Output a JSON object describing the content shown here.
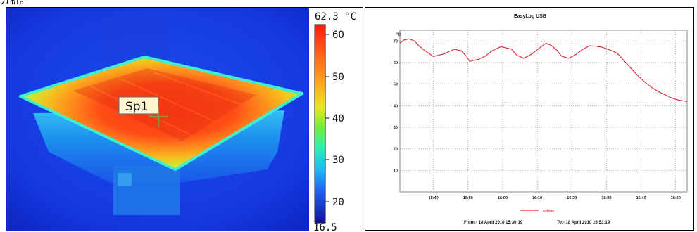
{
  "cropped_caption": "分析。",
  "thermal": {
    "max_label": "62.3 °C",
    "min_label": "16.5",
    "spot_label": "Sp1",
    "scale_ticks": [
      "60",
      "50",
      "40",
      "30",
      "20"
    ],
    "colors": {
      "background": "#1533e6",
      "hot": "#ff3b10",
      "warm": "#f5a61a",
      "edge": "#3df0c0"
    }
  },
  "chart_data": {
    "type": "line",
    "title": "EasyLog USB",
    "ylabel": "°C",
    "xlabel": "",
    "ylim": [
      0,
      75
    ],
    "y_ticks": [
      10,
      20,
      30,
      40,
      50,
      60,
      70
    ],
    "x_tick_labels": [
      "15:40",
      "15:50",
      "16:00",
      "16:10",
      "16:20",
      "16:30",
      "16:40",
      "16:50"
    ],
    "x_tick_minutes": [
      40,
      50,
      60,
      70,
      80,
      90,
      100,
      110
    ],
    "xlim_minutes": [
      30.3,
      113.3
    ],
    "grid": true,
    "legend_position": "bottom",
    "series": [
      {
        "name": "Celsius",
        "color": "#d9232f",
        "x": [
          30.3,
          31.5,
          33,
          34.5,
          36,
          38,
          40,
          43,
          46,
          48,
          49.5,
          50.5,
          51.5,
          53,
          55,
          57,
          59.5,
          61,
          62.5,
          64,
          66,
          68,
          70,
          72.5,
          74,
          75.5,
          77,
          79,
          81,
          83,
          85,
          87,
          88.5,
          90,
          91.5,
          93,
          95,
          97,
          99,
          101,
          103,
          105,
          107,
          109,
          111,
          113.3
        ],
        "values": [
          69,
          70.5,
          71,
          70,
          67.5,
          65,
          62.8,
          64,
          66.2,
          65.5,
          63,
          60.5,
          61,
          61.5,
          63,
          65.5,
          67.4,
          66.8,
          66.3,
          63.5,
          62,
          63.5,
          66,
          69,
          68,
          66,
          63,
          62,
          63.5,
          66,
          67.8,
          67.6,
          67.2,
          66.5,
          65.5,
          64.5,
          61,
          57.5,
          54,
          51,
          48.5,
          46.5,
          45,
          43.5,
          42.5,
          42
        ]
      }
    ],
    "date_range": {
      "from": "From:- 18 April 2010 15:30:19",
      "to": "To:- 18 April 2010 16:53:19"
    }
  }
}
